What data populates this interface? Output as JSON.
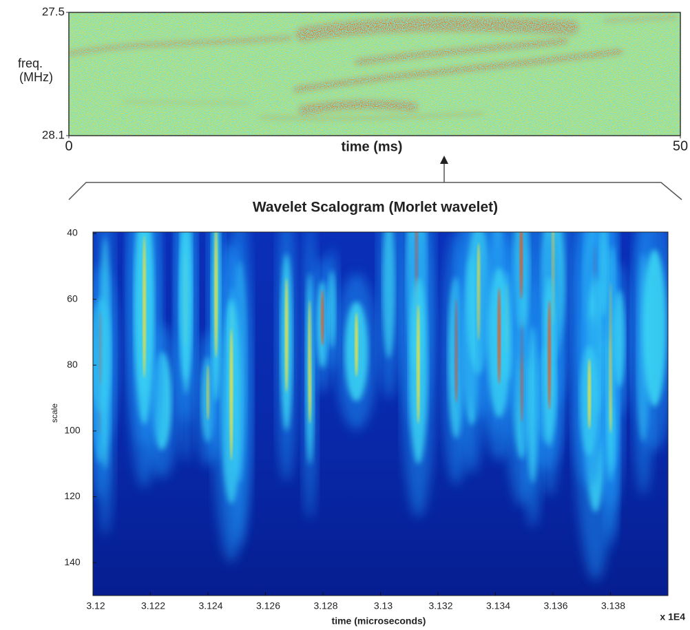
{
  "chart_data": [
    {
      "type": "heatmap",
      "ylabel_lines": [
        "freq.",
        "(MHz)"
      ],
      "xlabel": "time (ms)",
      "xlim": [
        0,
        50
      ],
      "xticks": [
        0,
        50
      ],
      "ylim": [
        27.5,
        28.1
      ],
      "yticks": [
        27.5,
        28.1
      ]
    },
    {
      "type": "heatmap",
      "title": "Wavelet Scalogram (Morlet wavelet)",
      "xlabel": "time (microseconds)",
      "ylabel": "scale",
      "x_multiplier": "x 1E4",
      "xlim": [
        3.12,
        3.14
      ],
      "xticks": [
        3.12,
        3.122,
        3.124,
        3.126,
        3.128,
        3.13,
        3.132,
        3.134,
        3.136,
        3.138
      ],
      "ylim": [
        40,
        150
      ],
      "yticks": [
        40,
        60,
        80,
        100,
        120,
        140
      ]
    }
  ]
}
